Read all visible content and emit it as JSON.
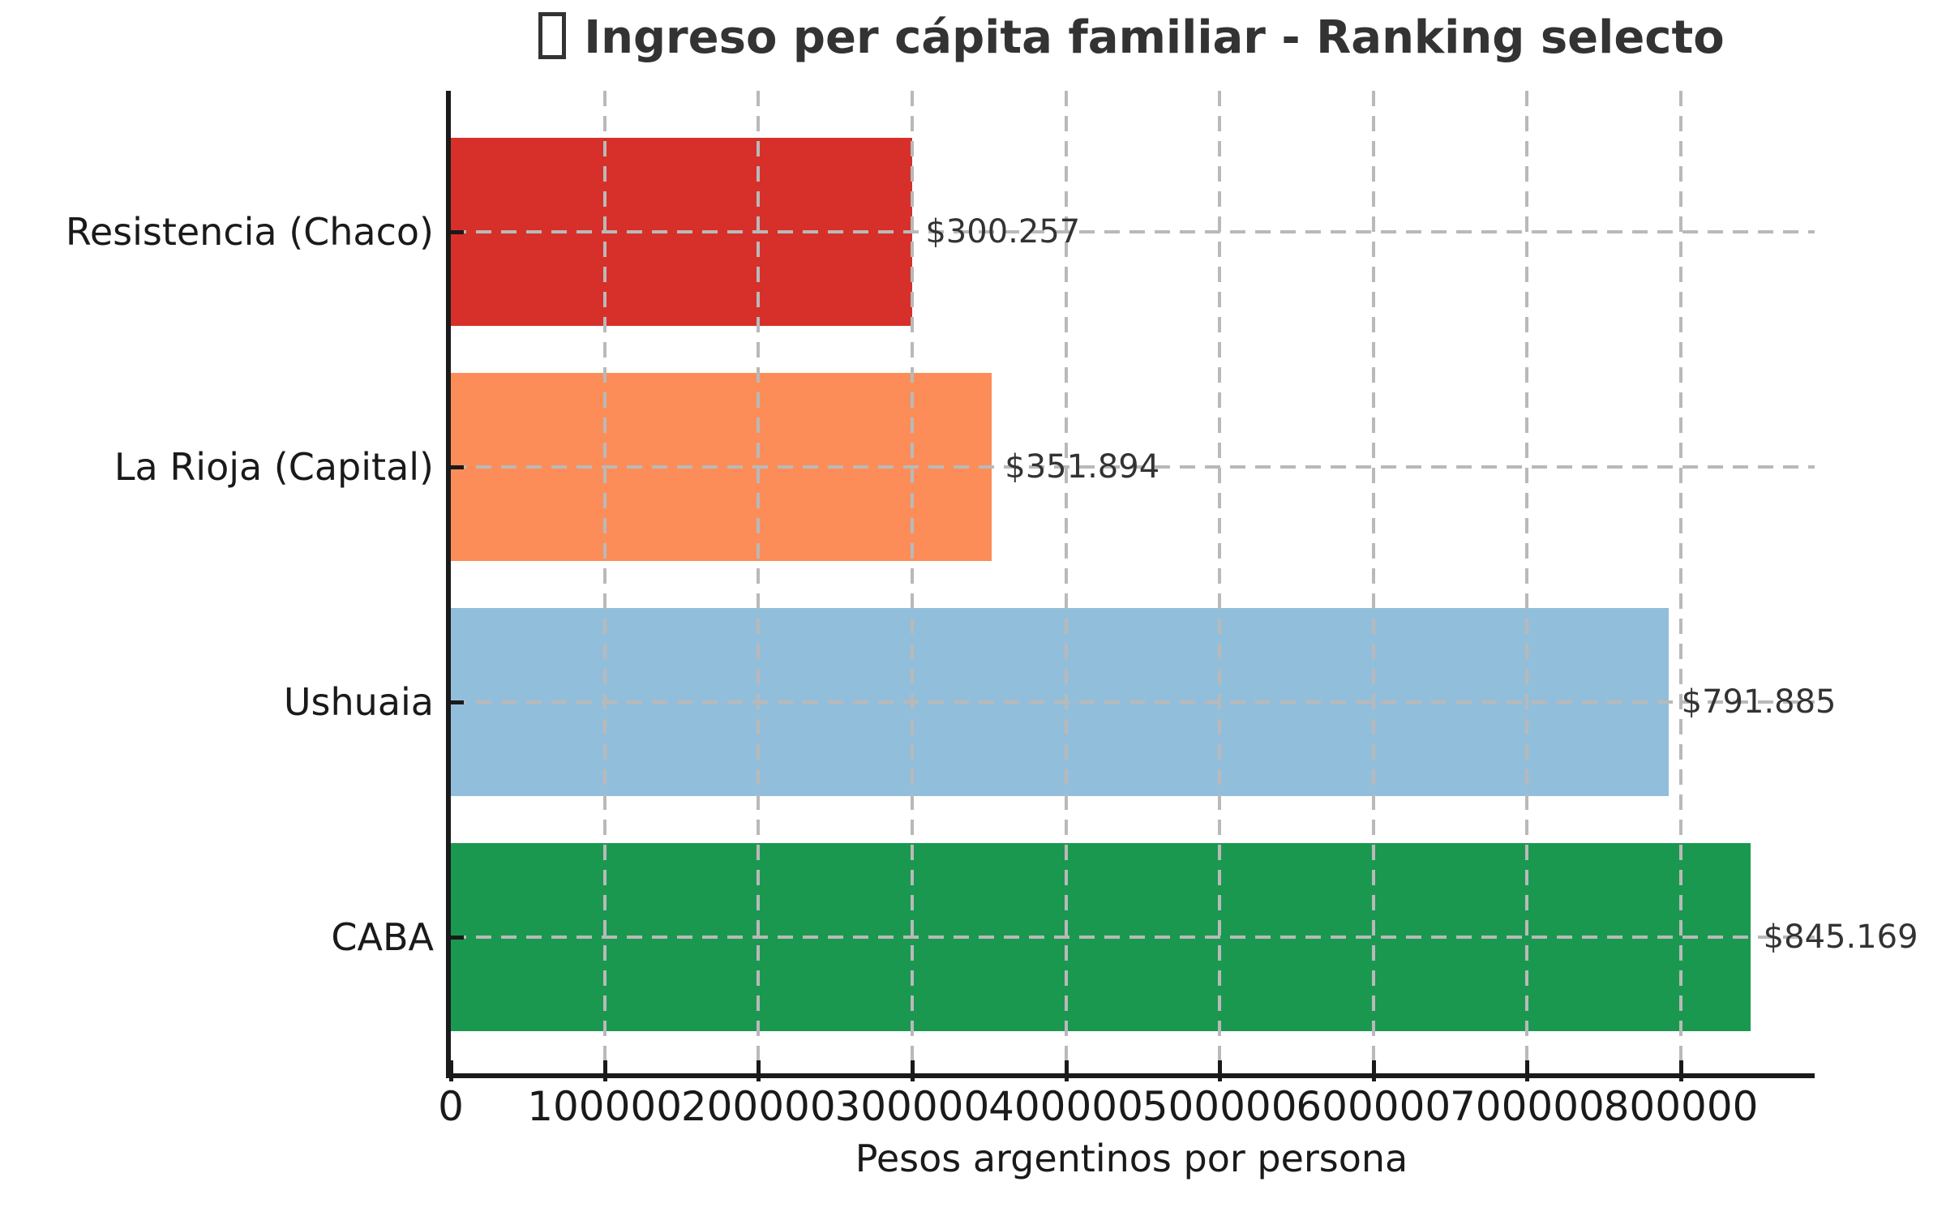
{
  "title": {
    "prefix_icon": "missing-glyph-box",
    "text": "Ingreso per cápita familiar - Ranking selecto"
  },
  "chart_data": {
    "type": "bar",
    "orientation": "horizontal",
    "title": "Ingreso per cápita familiar - Ranking selecto",
    "xlabel": "Pesos argentinos por persona",
    "ylabel": "",
    "categories": [
      "Resistencia (Chaco)",
      "La Rioja (Capital)",
      "Ushuaia",
      "CABA"
    ],
    "values": [
      300257,
      351894,
      791885,
      845169
    ],
    "value_labels": [
      "$300.257",
      "$351.894",
      "$791.885",
      "$845.169"
    ],
    "bar_colors": [
      "#d7302a",
      "#fc8d59",
      "#91bfdb",
      "#1a9850"
    ],
    "xlim": [
      0,
      887000
    ],
    "xticks": [
      0,
      100000,
      200000,
      300000,
      400000,
      500000,
      600000,
      700000,
      800000
    ],
    "xtick_labels": [
      "0",
      "100000",
      "200000",
      "300000",
      "400000",
      "500000",
      "600000",
      "700000",
      "800000"
    ],
    "grid": true,
    "grid_style": "dashed",
    "legend_position": "none"
  },
  "colors": {
    "grid": "#b9b9b9",
    "spine": "#1a1a1a",
    "title_text": "#333333",
    "tick_label_text": "#1a1a1a",
    "value_label_text": "#333333",
    "background": "#ffffff"
  }
}
